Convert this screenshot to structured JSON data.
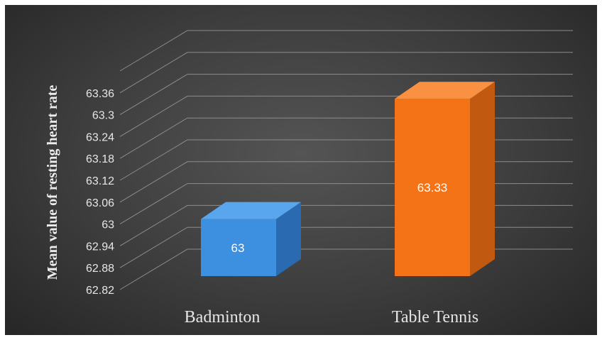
{
  "chart_data": {
    "type": "bar",
    "title": "",
    "xlabel": "",
    "ylabel": "Mean value of resting heart rate",
    "categories": [
      "Badminton",
      "Table Tennis"
    ],
    "values": [
      63,
      63.33
    ],
    "value_labels": [
      "63",
      "63.33"
    ],
    "yticks": [
      "62.82",
      "62.88",
      "62.94",
      "63",
      "63.06",
      "63.12",
      "63.18",
      "63.24",
      "63.3",
      "63.36"
    ],
    "ylim": [
      62.82,
      63.42
    ],
    "grid": true,
    "legend": "none",
    "style": "3d-column",
    "colors": {
      "Badminton": "#3d8fe0",
      "Table Tennis": "#f57317",
      "background": "#3d3d3d"
    }
  }
}
